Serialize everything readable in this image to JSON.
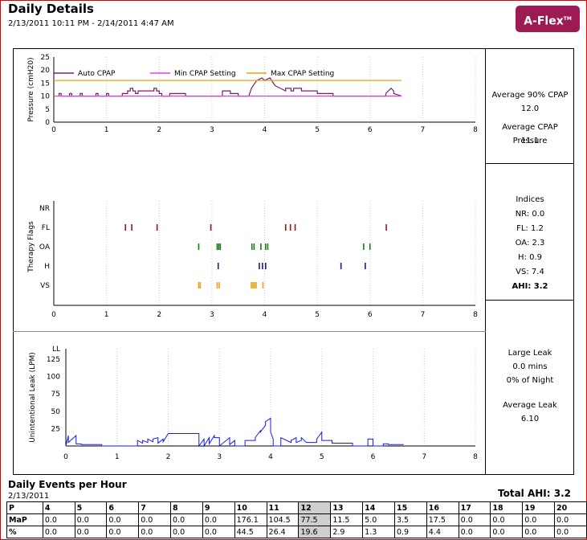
{
  "header": {
    "title": "Daily Details",
    "date_range": "2/13/2011 10:11 PM - 2/14/2011 4:47 AM",
    "logo_text": "A-Flex",
    "logo_tm": "TM",
    "logo_color": "#9c1b53"
  },
  "pressure_chart": {
    "chart_data": {
      "type": "line",
      "ylabel": "Pressure (cmH20)",
      "xlim": [
        0,
        8
      ],
      "ylim": [
        0,
        25
      ],
      "x_ticks": [
        "0",
        "1",
        "2",
        "3",
        "4",
        "5",
        "6",
        "7",
        "8"
      ],
      "y_ticks": [
        "0",
        "5",
        "10",
        "15",
        "20",
        "25"
      ],
      "legend_position": "top-left",
      "series": [
        {
          "name": "Auto CPAP",
          "color": "#7b1f6e",
          "x": [
            0.1,
            0.1,
            0.14,
            0.14,
            0.3,
            0.3,
            0.34,
            0.34,
            0.5,
            0.5,
            0.54,
            0.54,
            0.8,
            0.8,
            0.84,
            0.84,
            1.0,
            1.0,
            1.04,
            1.04,
            1.3,
            1.3,
            1.4,
            1.4,
            1.45,
            1.45,
            1.5,
            1.5,
            1.55,
            1.55,
            1.6,
            1.6,
            1.9,
            1.9,
            1.95,
            1.95,
            2.0,
            2.0,
            2.05,
            2.05,
            2.2,
            2.2,
            2.5,
            2.5,
            3.2,
            3.2,
            3.35,
            3.35,
            3.5,
            3.5,
            3.7,
            3.75,
            3.85,
            3.95,
            4.0,
            4.1,
            4.2,
            4.3,
            4.4,
            4.4,
            4.5,
            4.5,
            4.55,
            4.55,
            4.7,
            4.7,
            5.0,
            5.0,
            5.3,
            5.3,
            6.3,
            6.3,
            6.35,
            6.4,
            6.45,
            6.45,
            6.6
          ],
          "y": [
            10,
            11,
            11,
            10,
            10,
            11,
            11,
            10,
            10,
            11,
            11,
            10,
            10,
            11,
            11,
            10,
            10,
            11,
            11,
            10,
            10,
            11,
            11,
            12,
            12,
            13,
            13,
            12,
            12,
            11,
            11,
            12,
            12,
            13,
            13,
            12,
            12,
            11,
            11,
            10,
            10,
            11,
            11,
            10,
            10,
            12,
            12,
            11,
            11,
            10,
            10,
            13,
            16,
            17,
            16,
            17,
            14,
            13,
            12,
            13,
            13,
            12,
            12,
            13,
            13,
            12,
            12,
            11,
            11,
            10,
            10,
            11,
            12,
            13,
            12,
            11,
            10
          ]
        },
        {
          "name": "Min CPAP Setting",
          "color": "#e040e0",
          "x": [
            0,
            6.6
          ],
          "y": [
            10,
            10
          ]
        },
        {
          "name": "Max CPAP Setting",
          "color": "#e8a317",
          "x": [
            0,
            6.6
          ],
          "y": [
            16,
            16
          ]
        }
      ]
    }
  },
  "flags_chart": {
    "chart_data": {
      "type": "scatter",
      "ylabel": "Therapy Flags",
      "xlim": [
        0,
        8
      ],
      "x_ticks": [
        "0",
        "1",
        "2",
        "3",
        "4",
        "5",
        "6",
        "7",
        "8"
      ],
      "categories": [
        "NR",
        "FL",
        "OA",
        "H",
        "VS"
      ],
      "series": [
        {
          "name": "FL",
          "color": "#8b1a1a",
          "x": [
            1.36,
            1.48,
            1.96,
            2.98,
            4.4,
            4.49,
            4.58,
            6.31
          ]
        },
        {
          "name": "OA",
          "color": "#1a7a1a",
          "x": [
            2.75,
            3.1,
            3.13,
            3.16,
            3.76,
            3.8,
            3.93,
            4.02,
            4.06,
            5.88,
            6.0
          ]
        },
        {
          "name": "H",
          "color": "#1a1a7a",
          "x": [
            3.12,
            3.9,
            3.96,
            4.02,
            5.45,
            5.91
          ]
        },
        {
          "name": "VS",
          "color": "#e8a317",
          "x": [
            2.75,
            2.78,
            3.1,
            3.14,
            3.75,
            3.78,
            3.81,
            3.84,
            3.97
          ]
        }
      ]
    }
  },
  "leak_chart": {
    "chart_data": {
      "type": "line",
      "ylabel": "Unintentional Leak (LPM)",
      "xlim": [
        0,
        8
      ],
      "ylim": [
        0,
        140
      ],
      "x_ticks": [
        "0",
        "1",
        "2",
        "3",
        "4",
        "5",
        "6",
        "7",
        "8"
      ],
      "y_ticks": [
        "LL",
        "125",
        "100",
        "75",
        "50",
        "25"
      ],
      "series": [
        {
          "name": "Leak",
          "color": "#1a1aee",
          "x": [
            0,
            0.05,
            0.05,
            0.2,
            0.2,
            0.3,
            0.3,
            0.7,
            0.7,
            1.4,
            1.4,
            1.5,
            1.5,
            1.6,
            1.6,
            1.7,
            1.7,
            1.8,
            1.8,
            1.9,
            1.9,
            2.0,
            2.0,
            2.1,
            2.1,
            2.2,
            2.2,
            2.6,
            2.6,
            2.7,
            2.7,
            2.8,
            2.8,
            2.9,
            2.9,
            3.0,
            3.0,
            3.2,
            3.2,
            3.3,
            3.3,
            3.5,
            3.5,
            3.7,
            3.7,
            3.8,
            3.8,
            3.9,
            3.9,
            4.0,
            4.0,
            4.05,
            4.05,
            4.2,
            4.2,
            4.4,
            4.4,
            4.5,
            4.5,
            4.6,
            4.6,
            4.7,
            4.7,
            4.9,
            4.9,
            5.0,
            5.0,
            5.2,
            5.2,
            5.3,
            5.3,
            5.6,
            5.6,
            5.9,
            5.9,
            6.0,
            6.0,
            6.2,
            6.2,
            6.3,
            6.3,
            6.6
          ],
          "y": [
            0,
            15,
            5,
            15,
            3,
            3,
            2,
            2,
            0,
            0,
            8,
            4,
            8,
            5,
            10,
            6,
            10,
            12,
            4,
            10,
            6,
            18,
            18,
            18,
            18,
            18,
            18,
            18,
            0,
            10,
            0,
            12,
            3,
            15,
            12,
            12,
            0,
            12,
            2,
            8,
            0,
            0,
            8,
            8,
            12,
            22,
            20,
            30,
            35,
            40,
            20,
            10,
            0,
            0,
            12,
            5,
            8,
            12,
            5,
            8,
            12,
            5,
            5,
            5,
            10,
            20,
            8,
            8,
            4,
            4,
            4,
            4,
            0,
            0,
            10,
            10,
            0,
            0,
            3,
            3,
            2,
            2
          ]
        }
      ]
    }
  },
  "stats": {
    "cpap": {
      "avg90_label": "Average 90% CPAP",
      "avg90_value": "12.0",
      "avg_pressure_label": "Average CPAP Pressure",
      "avg_pressure_value": "11.1"
    },
    "indices": {
      "title": "Indices",
      "rows": [
        {
          "label": "NR:",
          "value": "0.0"
        },
        {
          "label": "FL:",
          "value": "1.2"
        },
        {
          "label": "OA:",
          "value": "2.3"
        },
        {
          "label": "H:",
          "value": "0.9"
        },
        {
          "label": "VS:",
          "value": "7.4"
        }
      ],
      "ahi_label": "AHI:",
      "ahi_value": "3.2"
    },
    "leak": {
      "large_leak_label": "Large Leak",
      "large_leak_mins": "0.0 mins",
      "large_leak_pct": "0% of Night",
      "avg_leak_label": "Average Leak",
      "avg_leak_value": "6.10"
    }
  },
  "events": {
    "title": "Daily Events per Hour",
    "date": "2/13/2011",
    "total_label": "Total AHI: 3.2",
    "rows": [
      [
        "P",
        "4",
        "5",
        "6",
        "7",
        "8",
        "9",
        "10",
        "11",
        "12",
        "13",
        "14",
        "15",
        "16",
        "17",
        "18",
        "19",
        "20"
      ],
      [
        "MaP",
        "0.0",
        "0.0",
        "0.0",
        "0.0",
        "0.0",
        "0.0",
        "176.1",
        "104.5",
        "77.5",
        "11.5",
        "5.0",
        "3.5",
        "17.5",
        "0.0",
        "0.0",
        "0.0",
        "0.0"
      ],
      [
        "%",
        "0.0",
        "0.0",
        "0.0",
        "0.0",
        "0.0",
        "0.0",
        "44.5",
        "26.4",
        "19.6",
        "2.9",
        "1.3",
        "0.9",
        "4.4",
        "0.0",
        "0.0",
        "0.0",
        "0.0"
      ]
    ],
    "highlight_col": 9
  }
}
